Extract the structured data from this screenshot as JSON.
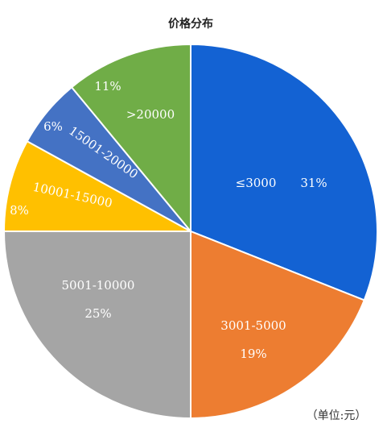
{
  "chart_data": {
    "type": "pie",
    "title": "价格分布",
    "categories": [
      "≤3000",
      "3001-5000",
      "5001-10000",
      "10001-15000",
      "15001-20000",
      ">20000"
    ],
    "values": [
      31,
      19,
      25,
      8,
      6,
      11
    ],
    "value_labels": [
      "31%",
      "19%",
      "25%",
      "8%",
      "6%",
      "11%"
    ],
    "colors": [
      "#1362d3",
      "#ed7d31",
      "#a5a5a5",
      "#ffc000",
      "#4472c4",
      "#70ad47"
    ],
    "note": "（单位:元）"
  }
}
